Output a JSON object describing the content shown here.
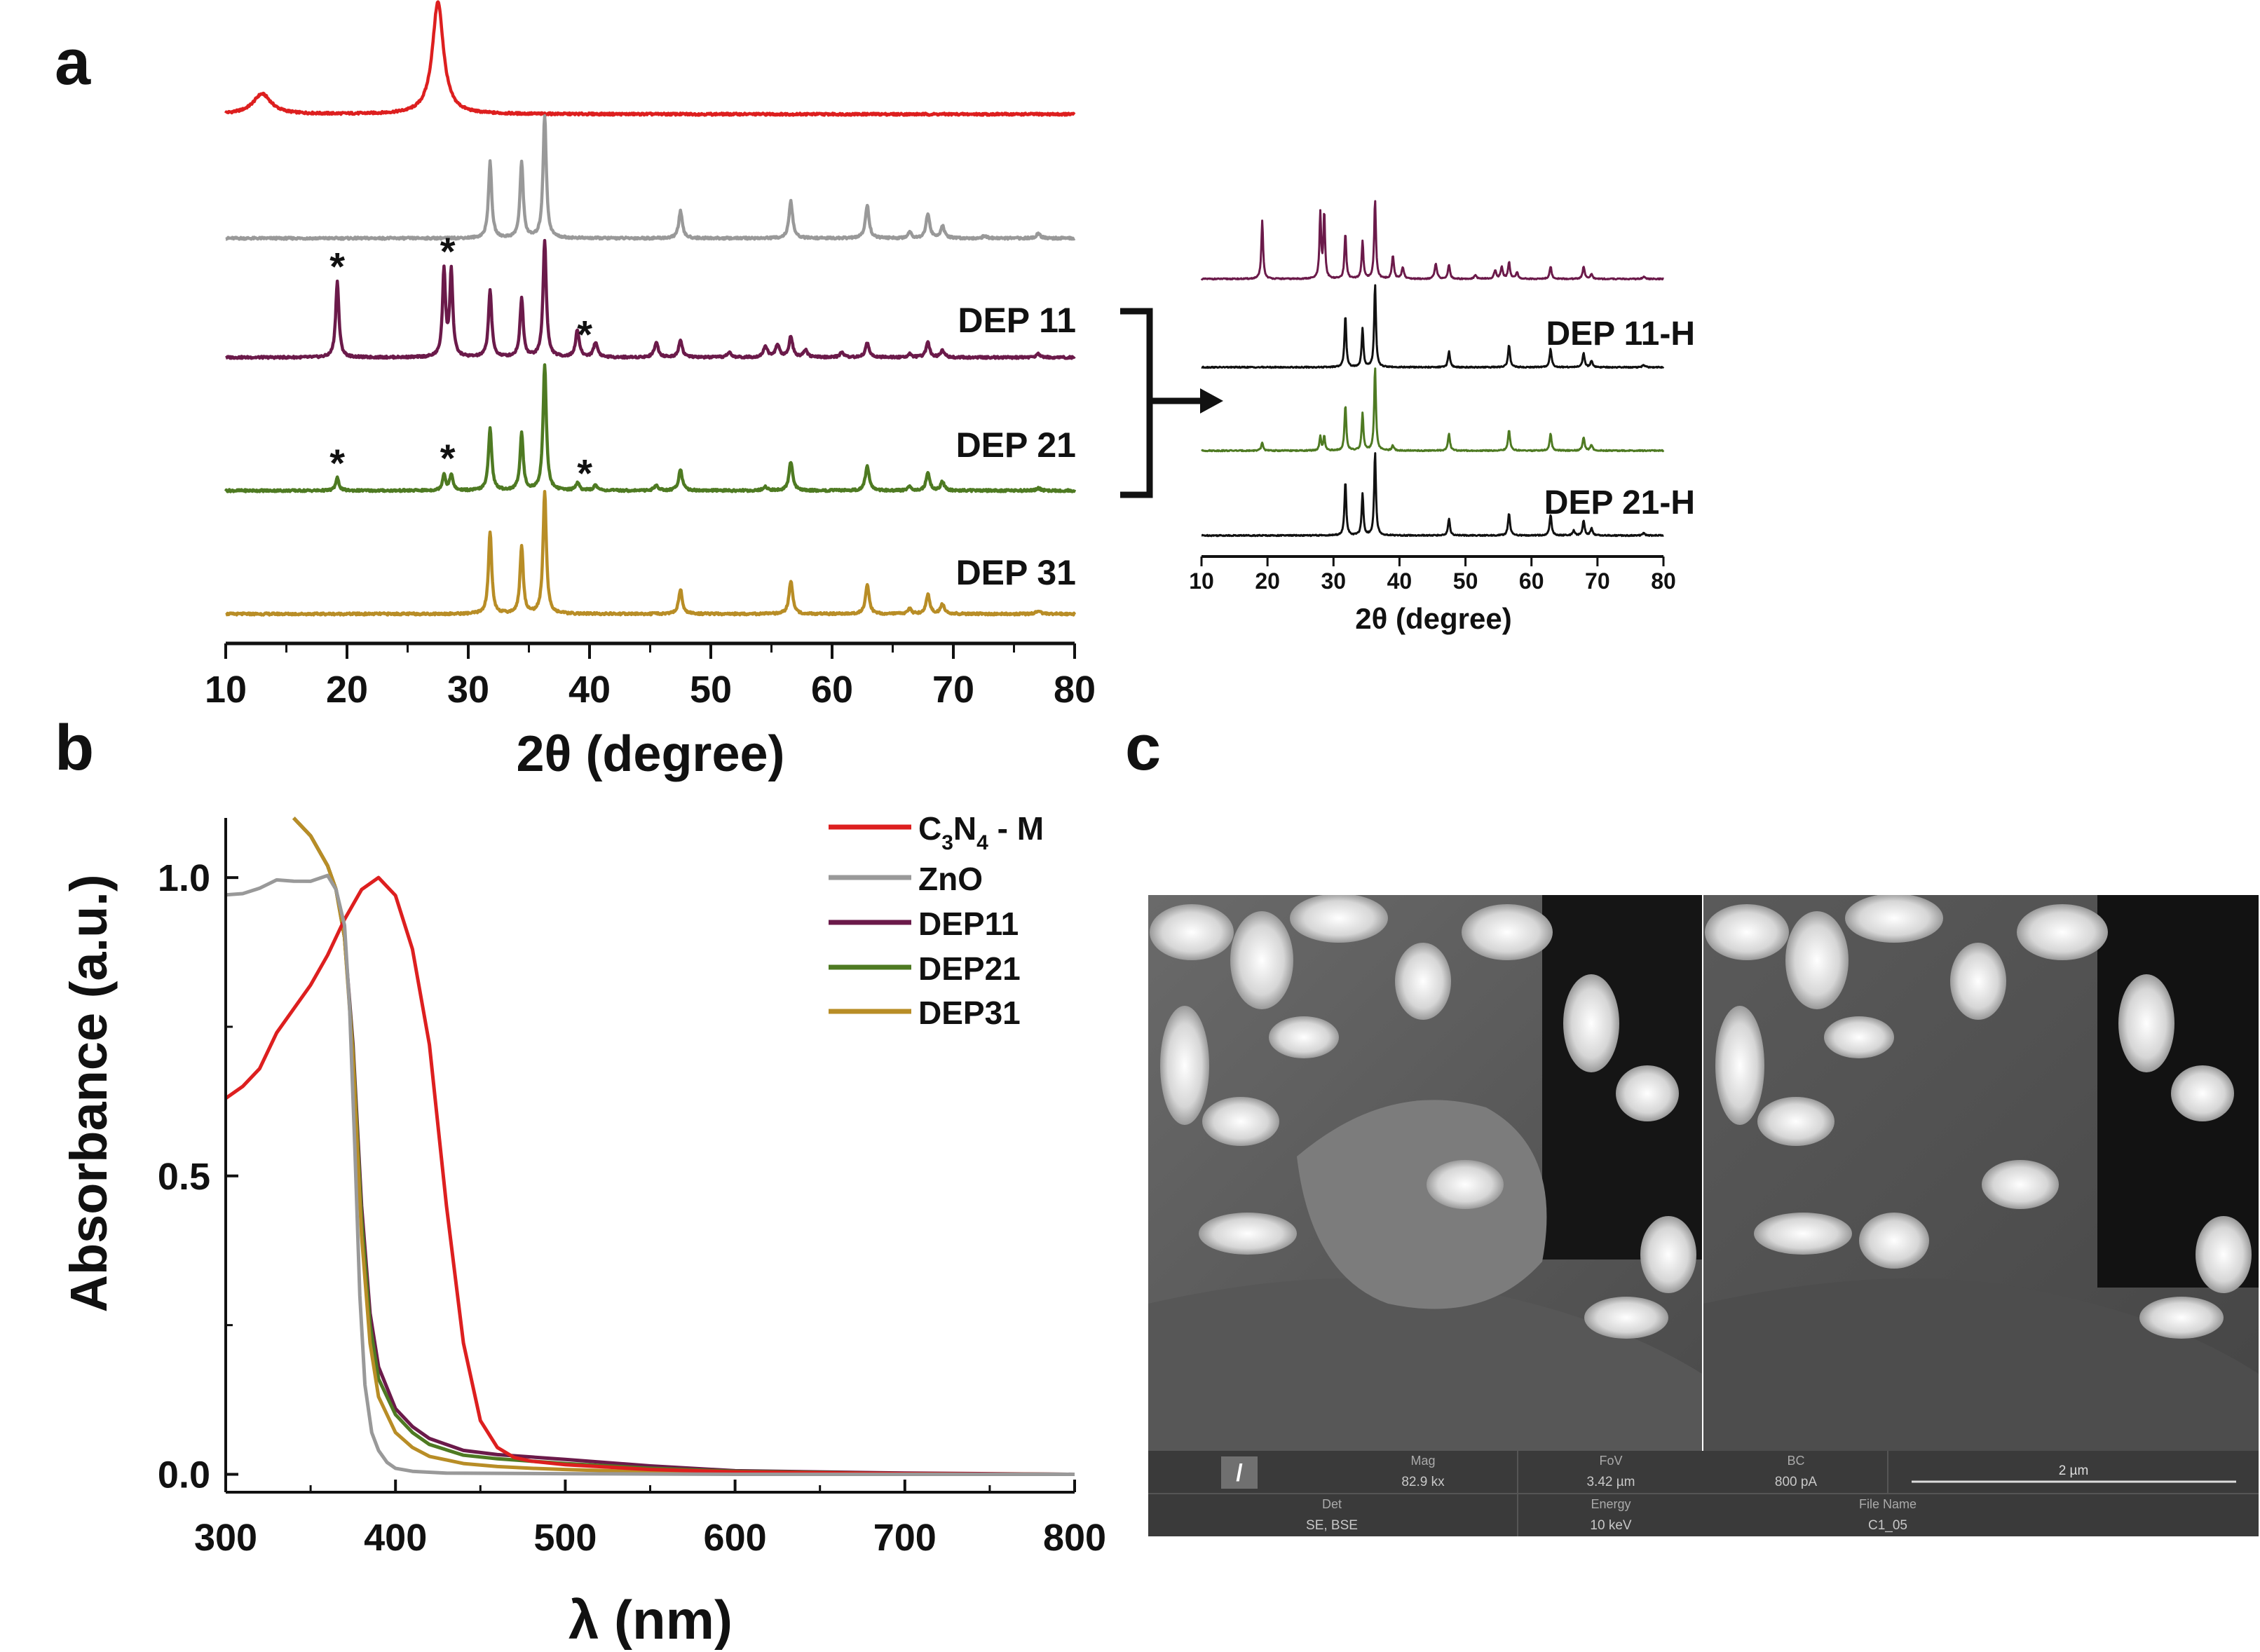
{
  "panels": {
    "a": "a",
    "b": "b",
    "c": "c"
  },
  "colors": {
    "c3n4": "#dd1f1f",
    "zno": "#999999",
    "dep11": "#6b1a4a",
    "dep21": "#4e7a22",
    "dep31": "#b88d26",
    "black": "#111111",
    "sem_bar": "#3a3a3a",
    "sem_text": "#c8c8c8"
  },
  "chart_data": [
    {
      "id": "xrd-main",
      "type": "line",
      "title": "",
      "xlabel": "2θ (degree)",
      "ylabel": "",
      "xlim": [
        10,
        80
      ],
      "xticks": [
        10,
        20,
        30,
        40,
        50,
        60,
        70,
        80
      ],
      "y_units": "arbitrary (stacked, offset)",
      "series": [
        {
          "name": "C3N4 - M",
          "color": "#dd1f1f",
          "label": "",
          "peaks": [
            {
              "x": 13.0,
              "h": 0.18,
              "w": 0.9
            },
            {
              "x": 27.5,
              "h": 1.0,
              "w": 0.55
            }
          ]
        },
        {
          "name": "ZnO",
          "color": "#999999",
          "label": "",
          "peaks": [
            {
              "x": 31.8,
              "h": 0.62,
              "w": 0.16
            },
            {
              "x": 34.4,
              "h": 0.62,
              "w": 0.16
            },
            {
              "x": 36.3,
              "h": 1.0,
              "w": 0.16
            },
            {
              "x": 47.5,
              "h": 0.22,
              "w": 0.18
            },
            {
              "x": 56.6,
              "h": 0.3,
              "w": 0.18
            },
            {
              "x": 62.9,
              "h": 0.27,
              "w": 0.18
            },
            {
              "x": 66.4,
              "h": 0.05,
              "w": 0.18
            },
            {
              "x": 67.9,
              "h": 0.2,
              "w": 0.18
            },
            {
              "x": 69.1,
              "h": 0.1,
              "w": 0.18
            },
            {
              "x": 72.6,
              "h": 0.02,
              "w": 0.2
            },
            {
              "x": 77.0,
              "h": 0.04,
              "w": 0.2
            }
          ]
        },
        {
          "name": "DEP 11",
          "color": "#6b1a4a",
          "label": "DEP 11",
          "peaks": [
            {
              "x": 19.2,
              "h": 0.62,
              "w": 0.16
            },
            {
              "x": 28.0,
              "h": 0.7,
              "w": 0.15
            },
            {
              "x": 28.6,
              "h": 0.7,
              "w": 0.15
            },
            {
              "x": 31.8,
              "h": 0.55,
              "w": 0.16
            },
            {
              "x": 34.4,
              "h": 0.48,
              "w": 0.16
            },
            {
              "x": 36.3,
              "h": 0.95,
              "w": 0.16
            },
            {
              "x": 39.0,
              "h": 0.22,
              "w": 0.18
            },
            {
              "x": 40.5,
              "h": 0.12,
              "w": 0.2
            },
            {
              "x": 45.5,
              "h": 0.12,
              "w": 0.2
            },
            {
              "x": 47.5,
              "h": 0.14,
              "w": 0.18
            },
            {
              "x": 51.5,
              "h": 0.04,
              "w": 0.2
            },
            {
              "x": 54.5,
              "h": 0.09,
              "w": 0.2
            },
            {
              "x": 55.5,
              "h": 0.1,
              "w": 0.2
            },
            {
              "x": 56.6,
              "h": 0.17,
              "w": 0.18
            },
            {
              "x": 57.8,
              "h": 0.06,
              "w": 0.2
            },
            {
              "x": 60.8,
              "h": 0.04,
              "w": 0.2
            },
            {
              "x": 62.9,
              "h": 0.12,
              "w": 0.18
            },
            {
              "x": 66.4,
              "h": 0.03,
              "w": 0.18
            },
            {
              "x": 67.9,
              "h": 0.12,
              "w": 0.18
            },
            {
              "x": 69.1,
              "h": 0.06,
              "w": 0.18
            },
            {
              "x": 77.0,
              "h": 0.03,
              "w": 0.2
            }
          ]
        },
        {
          "name": "DEP 21",
          "color": "#4e7a22",
          "label": "DEP 21",
          "peaks": [
            {
              "x": 19.2,
              "h": 0.1,
              "w": 0.16
            },
            {
              "x": 28.0,
              "h": 0.13,
              "w": 0.15
            },
            {
              "x": 28.6,
              "h": 0.13,
              "w": 0.15
            },
            {
              "x": 31.8,
              "h": 0.5,
              "w": 0.16
            },
            {
              "x": 34.4,
              "h": 0.45,
              "w": 0.16
            },
            {
              "x": 36.3,
              "h": 1.0,
              "w": 0.16
            },
            {
              "x": 39.0,
              "h": 0.06,
              "w": 0.18
            },
            {
              "x": 40.5,
              "h": 0.04,
              "w": 0.2
            },
            {
              "x": 45.5,
              "h": 0.04,
              "w": 0.2
            },
            {
              "x": 47.5,
              "h": 0.17,
              "w": 0.18
            },
            {
              "x": 54.5,
              "h": 0.03,
              "w": 0.2
            },
            {
              "x": 56.6,
              "h": 0.23,
              "w": 0.18
            },
            {
              "x": 62.9,
              "h": 0.2,
              "w": 0.18
            },
            {
              "x": 66.4,
              "h": 0.03,
              "w": 0.18
            },
            {
              "x": 67.9,
              "h": 0.14,
              "w": 0.18
            },
            {
              "x": 69.1,
              "h": 0.07,
              "w": 0.18
            },
            {
              "x": 77.0,
              "h": 0.02,
              "w": 0.2
            }
          ]
        },
        {
          "name": "DEP 31",
          "color": "#b88d26",
          "label": "DEP 31",
          "peaks": [
            {
              "x": 31.8,
              "h": 0.67,
              "w": 0.16
            },
            {
              "x": 34.4,
              "h": 0.55,
              "w": 0.16
            },
            {
              "x": 36.3,
              "h": 1.0,
              "w": 0.16
            },
            {
              "x": 47.5,
              "h": 0.2,
              "w": 0.18
            },
            {
              "x": 56.6,
              "h": 0.27,
              "w": 0.18
            },
            {
              "x": 62.9,
              "h": 0.24,
              "w": 0.18
            },
            {
              "x": 66.4,
              "h": 0.04,
              "w": 0.18
            },
            {
              "x": 67.9,
              "h": 0.16,
              "w": 0.18
            },
            {
              "x": 69.1,
              "h": 0.08,
              "w": 0.18
            },
            {
              "x": 77.0,
              "h": 0.03,
              "w": 0.2
            }
          ]
        }
      ],
      "annotations": [
        {
          "text": "*",
          "series": "DEP 11",
          "x": 19.2
        },
        {
          "text": "*",
          "series": "DEP 11",
          "x": 28.3
        },
        {
          "text": "*",
          "series": "DEP 11",
          "x": 39.6
        },
        {
          "text": "*",
          "series": "DEP 21",
          "x": 19.2
        },
        {
          "text": "*",
          "series": "DEP 21",
          "x": 28.3
        },
        {
          "text": "*",
          "series": "DEP 21",
          "x": 39.6
        }
      ]
    },
    {
      "id": "xrd-inset",
      "type": "line",
      "title": "",
      "xlabel": "2θ (degree)",
      "xlim": [
        10,
        80
      ],
      "xticks": [
        10,
        20,
        30,
        40,
        50,
        60,
        70,
        80
      ],
      "series": [
        {
          "name": "DEP 11 (inset)",
          "color": "#6b1a4a",
          "label": "",
          "peaks": [
            {
              "x": 19.2,
              "h": 0.7,
              "w": 0.16
            },
            {
              "x": 28.0,
              "h": 0.78,
              "w": 0.15
            },
            {
              "x": 28.6,
              "h": 0.78,
              "w": 0.15
            },
            {
              "x": 31.8,
              "h": 0.55,
              "w": 0.16
            },
            {
              "x": 34.4,
              "h": 0.45,
              "w": 0.16
            },
            {
              "x": 36.3,
              "h": 0.95,
              "w": 0.16
            },
            {
              "x": 39.0,
              "h": 0.28,
              "w": 0.18
            },
            {
              "x": 40.5,
              "h": 0.14,
              "w": 0.2
            },
            {
              "x": 45.5,
              "h": 0.18,
              "w": 0.2
            },
            {
              "x": 47.5,
              "h": 0.17,
              "w": 0.18
            },
            {
              "x": 51.5,
              "h": 0.05,
              "w": 0.2
            },
            {
              "x": 54.5,
              "h": 0.1,
              "w": 0.2
            },
            {
              "x": 55.5,
              "h": 0.14,
              "w": 0.2
            },
            {
              "x": 56.6,
              "h": 0.2,
              "w": 0.18
            },
            {
              "x": 57.8,
              "h": 0.08,
              "w": 0.2
            },
            {
              "x": 62.9,
              "h": 0.15,
              "w": 0.18
            },
            {
              "x": 67.9,
              "h": 0.15,
              "w": 0.18
            },
            {
              "x": 69.1,
              "h": 0.06,
              "w": 0.18
            },
            {
              "x": 77.0,
              "h": 0.03,
              "w": 0.2
            }
          ]
        },
        {
          "name": "DEP 11-H",
          "color": "#111111",
          "label": "DEP 11-H",
          "peaks": [
            {
              "x": 31.8,
              "h": 0.63,
              "w": 0.16
            },
            {
              "x": 34.4,
              "h": 0.47,
              "w": 0.16
            },
            {
              "x": 36.3,
              "h": 1.0,
              "w": 0.16
            },
            {
              "x": 47.5,
              "h": 0.19,
              "w": 0.18
            },
            {
              "x": 56.6,
              "h": 0.27,
              "w": 0.18
            },
            {
              "x": 62.9,
              "h": 0.22,
              "w": 0.18
            },
            {
              "x": 67.9,
              "h": 0.17,
              "w": 0.18
            },
            {
              "x": 69.1,
              "h": 0.08,
              "w": 0.18
            },
            {
              "x": 77.0,
              "h": 0.03,
              "w": 0.2
            }
          ]
        },
        {
          "name": "DEP 21 (inset)",
          "color": "#4e7a22",
          "label": "",
          "peaks": [
            {
              "x": 19.2,
              "h": 0.1,
              "w": 0.16
            },
            {
              "x": 28.0,
              "h": 0.17,
              "w": 0.15
            },
            {
              "x": 28.6,
              "h": 0.17,
              "w": 0.15
            },
            {
              "x": 31.8,
              "h": 0.55,
              "w": 0.16
            },
            {
              "x": 34.4,
              "h": 0.45,
              "w": 0.16
            },
            {
              "x": 36.3,
              "h": 1.0,
              "w": 0.16
            },
            {
              "x": 39.0,
              "h": 0.06,
              "w": 0.18
            },
            {
              "x": 47.5,
              "h": 0.2,
              "w": 0.18
            },
            {
              "x": 56.6,
              "h": 0.25,
              "w": 0.18
            },
            {
              "x": 62.9,
              "h": 0.2,
              "w": 0.18
            },
            {
              "x": 67.9,
              "h": 0.16,
              "w": 0.18
            },
            {
              "x": 69.1,
              "h": 0.07,
              "w": 0.18
            }
          ]
        },
        {
          "name": "DEP 21-H",
          "color": "#111111",
          "label": "DEP 21-H",
          "peaks": [
            {
              "x": 31.8,
              "h": 0.65,
              "w": 0.16
            },
            {
              "x": 34.4,
              "h": 0.5,
              "w": 0.16
            },
            {
              "x": 36.3,
              "h": 1.0,
              "w": 0.16
            },
            {
              "x": 47.5,
              "h": 0.2,
              "w": 0.18
            },
            {
              "x": 56.6,
              "h": 0.27,
              "w": 0.18
            },
            {
              "x": 62.9,
              "h": 0.25,
              "w": 0.18
            },
            {
              "x": 66.4,
              "h": 0.06,
              "w": 0.18
            },
            {
              "x": 67.9,
              "h": 0.18,
              "w": 0.18
            },
            {
              "x": 69.1,
              "h": 0.09,
              "w": 0.18
            },
            {
              "x": 77.0,
              "h": 0.03,
              "w": 0.2
            }
          ]
        }
      ]
    },
    {
      "id": "uvvis",
      "type": "line",
      "title": "",
      "xlabel": "λ (nm)",
      "ylabel": "Absorbance (a.u.)",
      "xlim": [
        300,
        800
      ],
      "ylim": [
        -0.03,
        1.1
      ],
      "xticks": [
        300,
        400,
        500,
        600,
        700,
        800
      ],
      "yticks": [
        0.0,
        0.5,
        1.0
      ],
      "ytick_labels": [
        "0.0",
        "0.5",
        "1.0"
      ],
      "legend_position": "top-right",
      "series": [
        {
          "name": "C3N4 - M",
          "color": "#dd1f1f",
          "x": [
            300,
            310,
            320,
            330,
            340,
            350,
            360,
            370,
            380,
            390,
            400,
            410,
            420,
            430,
            440,
            450,
            460,
            470,
            480,
            500,
            550,
            600,
            700,
            800
          ],
          "y": [
            0.63,
            0.65,
            0.68,
            0.74,
            0.78,
            0.82,
            0.87,
            0.93,
            0.98,
            1.0,
            0.97,
            0.88,
            0.72,
            0.45,
            0.22,
            0.09,
            0.045,
            0.028,
            0.022,
            0.016,
            0.008,
            0.004,
            0.001,
            0.0
          ]
        },
        {
          "name": "ZnO",
          "color": "#999999",
          "x": [
            300,
            310,
            320,
            330,
            340,
            350,
            360,
            365,
            370,
            373,
            376,
            379,
            382,
            386,
            390,
            395,
            400,
            410,
            430,
            500,
            600,
            800
          ],
          "y": [
            0.98,
            0.98,
            0.99,
            0.99,
            1.0,
            1.0,
            1.0,
            0.98,
            0.92,
            0.78,
            0.55,
            0.3,
            0.15,
            0.07,
            0.04,
            0.02,
            0.01,
            0.005,
            0.002,
            0.001,
            0.0,
            0.0
          ]
        },
        {
          "name": "DEP11",
          "color": "#6b1a4a",
          "x": [
            340,
            350,
            360,
            365,
            370,
            375,
            380,
            385,
            390,
            400,
            410,
            420,
            440,
            460,
            480,
            500,
            550,
            600,
            700,
            800
          ],
          "y": [
            1.12,
            1.07,
            1.02,
            0.98,
            0.9,
            0.72,
            0.45,
            0.27,
            0.18,
            0.11,
            0.08,
            0.06,
            0.04,
            0.033,
            0.029,
            0.025,
            0.014,
            0.006,
            0.002,
            0.0
          ]
        },
        {
          "name": "DEP21",
          "color": "#4e7a22",
          "x": [
            340,
            350,
            360,
            365,
            370,
            375,
            380,
            385,
            390,
            400,
            410,
            420,
            440,
            460,
            480,
            500,
            550,
            600,
            700,
            800
          ],
          "y": [
            1.12,
            1.07,
            1.02,
            0.98,
            0.9,
            0.71,
            0.43,
            0.25,
            0.16,
            0.1,
            0.07,
            0.05,
            0.032,
            0.026,
            0.022,
            0.018,
            0.01,
            0.005,
            0.001,
            0.0
          ]
        },
        {
          "name": "DEP31",
          "color": "#b88d26",
          "x": [
            340,
            350,
            360,
            365,
            370,
            375,
            380,
            385,
            390,
            400,
            410,
            420,
            440,
            460,
            480,
            500,
            550,
            600,
            700,
            800
          ],
          "y": [
            1.12,
            1.07,
            1.02,
            0.98,
            0.9,
            0.7,
            0.4,
            0.22,
            0.13,
            0.07,
            0.045,
            0.03,
            0.018,
            0.013,
            0.01,
            0.008,
            0.004,
            0.002,
            0.0,
            0.0
          ]
        }
      ]
    }
  ],
  "legend": {
    "c3n4_main": "C",
    "c3n4_sub1": "3",
    "c3n4_n": "N",
    "c3n4_sub2": "4",
    "c3n4_tail": " - M",
    "zno": "ZnO",
    "dep11": "DEP11",
    "dep21": "DEP21",
    "dep31": "DEP31"
  },
  "sem": {
    "mag_label": "Mag",
    "mag_value": "82.9 kx",
    "fov_label": "FoV",
    "fov_value": "3.42 µm",
    "bc_label": "BC",
    "bc_value": "800 pA",
    "scale_value": "2 µm",
    "det_label": "Det",
    "det_value": "SE, BSE",
    "energy_label": "Energy",
    "energy_value": "10 keV",
    "file_label": "File Name",
    "file_value": "C1_05"
  }
}
